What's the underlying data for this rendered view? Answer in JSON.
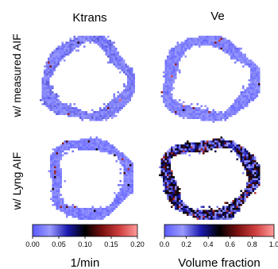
{
  "chart_data": {
    "type": "heatmap",
    "columns": [
      "Ktrans",
      "Ve"
    ],
    "rows": [
      "w/ measured AIF",
      "w/ Lyng AIF"
    ],
    "colorbars": [
      {
        "label": "1/min",
        "range": [
          0,
          0.2
        ],
        "ticks": [
          "0.00",
          "0.05",
          "0.10",
          "0.15",
          "0.20"
        ]
      },
      {
        "label": "Volume fraction",
        "range": [
          0,
          1
        ],
        "ticks": [
          "0.0",
          "0.2",
          "0.4",
          "0.6",
          "0.8",
          "1.0"
        ]
      }
    ],
    "colormap": [
      "#5a5aff",
      "#9a9aff",
      "#1a1ab0",
      "#000000",
      "#7a1010",
      "#d04040",
      "#ff9c9c"
    ],
    "panels": [
      {
        "row": 0,
        "col": 0,
        "typical_value": 0.03,
        "spread": 0.02,
        "hot_fraction": 0.01,
        "hot_value": 0.15,
        "ring_width": 0.22
      },
      {
        "row": 0,
        "col": 1,
        "typical_value": 0.12,
        "spread": 0.08,
        "hot_fraction": 0.02,
        "hot_value": 0.75,
        "ring_width": 0.22
      },
      {
        "row": 1,
        "col": 0,
        "typical_value": 0.02,
        "spread": 0.012,
        "hot_fraction": 0.04,
        "hot_value": 0.14,
        "ring_width": 0.22
      },
      {
        "row": 1,
        "col": 1,
        "typical_value": 0.35,
        "spread": 0.25,
        "hot_fraction": 0.08,
        "hot_value": 0.7,
        "ring_width": 0.22
      }
    ]
  }
}
